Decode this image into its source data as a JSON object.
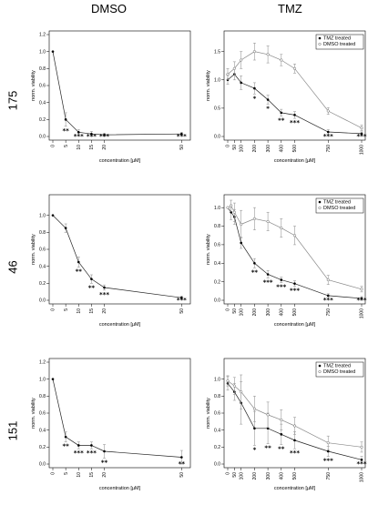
{
  "columns": [
    "DMSO",
    "TMZ"
  ],
  "rows": [
    "175",
    "46",
    "151"
  ],
  "chart_data": [
    {
      "id": "dmso-175",
      "type": "line",
      "ylabel": "norm. viability",
      "xlabel": "concentration [µM]",
      "xscale": "linear",
      "xlim": [
        0,
        52
      ],
      "ylim": [
        0,
        1.2
      ],
      "xticks": [
        0,
        5,
        10,
        15,
        20,
        50
      ],
      "yticks": [
        0.0,
        0.2,
        0.4,
        0.6,
        0.8,
        1.0,
        1.2
      ],
      "legend": [],
      "series": [
        {
          "style": "filled",
          "x": [
            0,
            5,
            10,
            15,
            20,
            50
          ],
          "y": [
            1.0,
            0.2,
            0.05,
            0.03,
            0.02,
            0.03
          ],
          "err": [
            0.0,
            0.08,
            0.03,
            0.03,
            0.02,
            0.02
          ],
          "sig": [
            "",
            "**",
            "***",
            "***",
            "***",
            "***"
          ]
        }
      ]
    },
    {
      "id": "tmz-175",
      "type": "line",
      "ylabel": "norm. viability",
      "xlabel": "concentration [µM]",
      "xscale": "linear",
      "xlim": [
        0,
        1000
      ],
      "ylim": [
        0,
        1.8
      ],
      "xticks": [
        0,
        50,
        100,
        200,
        300,
        400,
        500,
        750,
        1000
      ],
      "yticks": [
        0.0,
        0.5,
        1.0,
        1.5
      ],
      "legend": [
        "TMZ treated",
        "DMSO treated"
      ],
      "series": [
        {
          "style": "filled",
          "x": [
            0,
            50,
            100,
            200,
            300,
            400,
            500,
            750,
            1000
          ],
          "y": [
            1.0,
            1.1,
            0.95,
            0.85,
            0.65,
            0.42,
            0.38,
            0.08,
            0.05
          ],
          "err": [
            0.08,
            0.1,
            0.12,
            0.1,
            0.08,
            0.06,
            0.06,
            0.04,
            0.03
          ],
          "sig": [
            "",
            "",
            "",
            "*",
            "*",
            "**",
            "***",
            "***",
            "***"
          ]
        },
        {
          "style": "open",
          "x": [
            0,
            50,
            100,
            200,
            300,
            400,
            500,
            750,
            1000
          ],
          "y": [
            1.1,
            1.2,
            1.35,
            1.5,
            1.45,
            1.35,
            1.2,
            0.45,
            0.15
          ],
          "err": [
            0.1,
            0.12,
            0.15,
            0.15,
            0.15,
            0.1,
            0.08,
            0.06,
            0.05
          ],
          "sig": [
            "",
            "",
            "",
            "",
            "",
            "",
            "",
            "",
            ""
          ]
        }
      ]
    },
    {
      "id": "dmso-46",
      "type": "line",
      "ylabel": "norm. viability",
      "xlabel": "concentration [µM]",
      "xscale": "linear",
      "xlim": [
        0,
        52
      ],
      "ylim": [
        0,
        1.2
      ],
      "xticks": [
        0,
        5,
        10,
        15,
        20,
        50
      ],
      "yticks": [
        0.0,
        0.2,
        0.4,
        0.6,
        0.8,
        1.0
      ],
      "legend": [],
      "series": [
        {
          "style": "filled",
          "x": [
            0,
            5,
            10,
            15,
            20,
            50
          ],
          "y": [
            1.0,
            0.85,
            0.45,
            0.25,
            0.15,
            0.03
          ],
          "err": [
            0.0,
            0.05,
            0.06,
            0.05,
            0.03,
            0.02
          ],
          "sig": [
            "",
            "",
            "**",
            "**",
            "***",
            "***"
          ]
        }
      ]
    },
    {
      "id": "tmz-46",
      "type": "line",
      "ylabel": "norm. viability",
      "xlabel": "concentration [µM]",
      "xscale": "linear",
      "xlim": [
        0,
        1000
      ],
      "ylim": [
        0,
        1.1
      ],
      "xticks": [
        0,
        50,
        100,
        200,
        300,
        400,
        500,
        750,
        1000
      ],
      "yticks": [
        0.0,
        0.2,
        0.4,
        0.6,
        0.8,
        1.0
      ],
      "legend": [
        "TMZ treated",
        "DMSO treated"
      ],
      "series": [
        {
          "style": "filled",
          "x": [
            0,
            25,
            50,
            100,
            200,
            300,
            400,
            500,
            750,
            1000
          ],
          "y": [
            1.0,
            0.95,
            0.9,
            0.62,
            0.4,
            0.28,
            0.22,
            0.18,
            0.05,
            0.02
          ],
          "err": [
            0.0,
            0.08,
            0.08,
            0.06,
            0.05,
            0.04,
            0.03,
            0.03,
            0.02,
            0.02
          ],
          "sig": [
            "",
            "",
            "",
            "",
            "**",
            "***",
            "***",
            "***",
            "***",
            "***"
          ]
        },
        {
          "style": "open",
          "x": [
            0,
            25,
            50,
            100,
            200,
            300,
            400,
            500,
            750,
            1000
          ],
          "y": [
            1.0,
            1.02,
            0.95,
            0.82,
            0.88,
            0.85,
            0.78,
            0.7,
            0.22,
            0.12
          ],
          "err": [
            0.0,
            0.06,
            0.1,
            0.15,
            0.12,
            0.1,
            0.1,
            0.1,
            0.05,
            0.03
          ],
          "sig": [
            "",
            "",
            "",
            "",
            "",
            "",
            "",
            "",
            "",
            ""
          ]
        }
      ]
    },
    {
      "id": "dmso-151",
      "type": "line",
      "ylabel": "norm. viability",
      "xlabel": "concentration [µM]",
      "xscale": "linear",
      "xlim": [
        0,
        52
      ],
      "ylim": [
        0,
        1.2
      ],
      "xticks": [
        0,
        5,
        10,
        15,
        20,
        50
      ],
      "yticks": [
        0.0,
        0.2,
        0.4,
        0.6,
        0.8,
        1.0,
        1.2
      ],
      "legend": [],
      "series": [
        {
          "style": "filled",
          "x": [
            0,
            5,
            10,
            15,
            20,
            50
          ],
          "y": [
            1.0,
            0.32,
            0.22,
            0.22,
            0.15,
            0.08
          ],
          "err": [
            0.0,
            0.06,
            0.04,
            0.04,
            0.08,
            0.08
          ],
          "sig": [
            "",
            "**",
            "***",
            "***",
            "**",
            "**"
          ]
        }
      ]
    },
    {
      "id": "tmz-151",
      "type": "line",
      "ylabel": "norm. viability",
      "xlabel": "concentration [µM]",
      "xscale": "linear",
      "xlim": [
        0,
        1000
      ],
      "ylim": [
        0,
        1.2
      ],
      "xticks": [
        0,
        50,
        100,
        200,
        300,
        400,
        500,
        750,
        1000
      ],
      "yticks": [
        0.0,
        0.2,
        0.4,
        0.6,
        0.8,
        1.0
      ],
      "legend": [
        "TMZ treated",
        "DMSO treated"
      ],
      "series": [
        {
          "style": "filled",
          "x": [
            0,
            50,
            100,
            200,
            300,
            400,
            500,
            750,
            1000
          ],
          "y": [
            0.95,
            0.85,
            0.72,
            0.42,
            0.42,
            0.35,
            0.28,
            0.15,
            0.05
          ],
          "err": [
            0.08,
            0.1,
            0.25,
            0.2,
            0.18,
            0.12,
            0.1,
            0.06,
            0.04
          ],
          "sig": [
            "",
            "",
            "",
            "*",
            "**",
            "**",
            "***",
            "***",
            "***"
          ]
        },
        {
          "style": "open",
          "x": [
            0,
            50,
            100,
            200,
            300,
            400,
            500,
            750,
            1000
          ],
          "y": [
            0.98,
            0.92,
            0.85,
            0.65,
            0.58,
            0.52,
            0.45,
            0.25,
            0.2
          ],
          "err": [
            0.06,
            0.1,
            0.2,
            0.15,
            0.15,
            0.12,
            0.1,
            0.08,
            0.06
          ],
          "sig": [
            "",
            "",
            "",
            "",
            "",
            "",
            "",
            "",
            ""
          ]
        }
      ]
    }
  ]
}
